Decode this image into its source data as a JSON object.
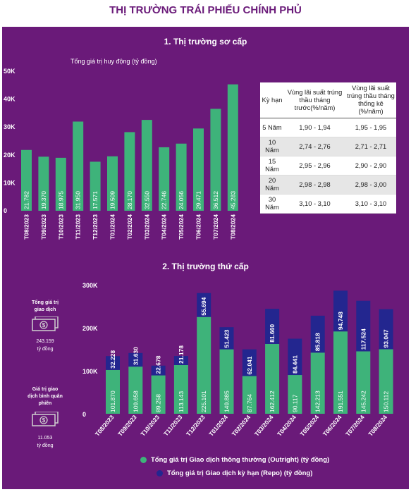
{
  "title": "THỊ TRƯỜNG TRÁI PHIẾU CHÍNH PHỦ",
  "colors": {
    "background": "#6a1a79",
    "green": "#3eb37a",
    "blue": "#23268f",
    "title": "#6a1a79"
  },
  "section1": {
    "title": "1. Thị trường sơ cấp",
    "chart_label": "Tổng giá trị huy động (tỷ đồng)"
  },
  "section2": {
    "title": "2. Thị trường thứ cấp"
  },
  "rate_table": {
    "headers": [
      "Kỳ hạn",
      "Vùng lãi suất trúng thầu tháng trước(%/năm)",
      "Vùng lãi suất trúng thầu tháng thống kê (%/năm)"
    ],
    "rows": [
      {
        "term": "5 Năm",
        "prev": "1,90 - 1,94",
        "curr": "1,95 - 1,95"
      },
      {
        "term": "10 Năm",
        "prev": "2,74 - 2,76",
        "curr": "2,71 - 2,71"
      },
      {
        "term": "15 Năm",
        "prev": "2,95 - 2,96",
        "curr": "2,90 - 2,90"
      },
      {
        "term": "20 Năm",
        "prev": "2,98 - 2,98",
        "curr": "2,98 - 3,00"
      },
      {
        "term": "30 Năm",
        "prev": "3,10 - 3,10",
        "curr": "3,10 - 3,10"
      }
    ]
  },
  "side_stats": [
    {
      "label": "Tổng giá trị giao dịch",
      "value": "243.159",
      "unit": "tỷ đồng",
      "icon": "money-icon"
    },
    {
      "label": "Giá trị giao dịch bình quân phiên",
      "value": "11.053",
      "unit": "tỷ đồng",
      "icon": "money-icon"
    }
  ],
  "chart_data": [
    {
      "type": "bar",
      "title": "Tổng giá trị huy động (tỷ đồng)",
      "categories": [
        "T08/2023",
        "T09/2023",
        "T10/2023",
        "T11/2023",
        "T12/2023",
        "T01/2024",
        "T02/2024",
        "T03/2024",
        "T04/2024",
        "T05/2024",
        "T06/2024",
        "T07/2024",
        "T08/2024"
      ],
      "values": [
        21782,
        19370,
        18975,
        31950,
        17571,
        19509,
        28170,
        32550,
        22746,
        24056,
        29471,
        36512,
        45283
      ],
      "value_labels": [
        "21.782",
        "19.370",
        "18.975",
        "31.950",
        "17.571",
        "19.509",
        "28.170",
        "32.550",
        "22.746",
        "24.056",
        "29.471",
        "36.512",
        "45.283"
      ],
      "ylim": [
        0,
        50000
      ],
      "yticks": [
        0,
        10000,
        20000,
        30000,
        40000,
        50000
      ],
      "ytick_labels": [
        "0",
        "10K",
        "20K",
        "30K",
        "40K",
        "50K"
      ]
    },
    {
      "type": "bar",
      "stacked": true,
      "categories": [
        "T08/2023",
        "T09/2023",
        "T10/2023",
        "T11/2023",
        "T12/2023",
        "T01/2024",
        "T02/2024",
        "T03/2024",
        "T04/2024",
        "T05/2024",
        "T06/2024",
        "T07/2024",
        "T08/2024"
      ],
      "series": [
        {
          "name": "Tổng giá trị Giao dịch thông thường (Outright) (tỷ đồng)",
          "values": [
            101870,
            109658,
            89258,
            113143,
            225101,
            149885,
            87764,
            162412,
            90117,
            142213,
            191551,
            145242,
            150112
          ],
          "labels": [
            "101.870",
            "109.658",
            "89.258",
            "113.143",
            "225.101",
            "149.885",
            "87.764",
            "162.412",
            "90.117",
            "142.213",
            "191.551",
            "145.242",
            "150.112"
          ]
        },
        {
          "name": "Tổng giá trị Giao dịch kỳ hạn (Repo) (tỷ đồng)",
          "values": [
            32228,
            31630,
            22678,
            21178,
            55694,
            51423,
            62041,
            81660,
            84441,
            85818,
            94748,
            117524,
            93047
          ],
          "labels": [
            "32.228",
            "31.630",
            "22.678",
            "21.178",
            "55.694",
            "51.423",
            "62.041",
            "81.660",
            "84.441",
            "85.818",
            "94.748",
            "117.524",
            "93.047"
          ]
        }
      ],
      "ylim": [
        0,
        300000
      ],
      "yticks": [
        0,
        100000,
        200000,
        300000
      ],
      "ytick_labels": [
        "0",
        "100K",
        "200K",
        "300K"
      ],
      "legend_position": "bottom"
    }
  ]
}
